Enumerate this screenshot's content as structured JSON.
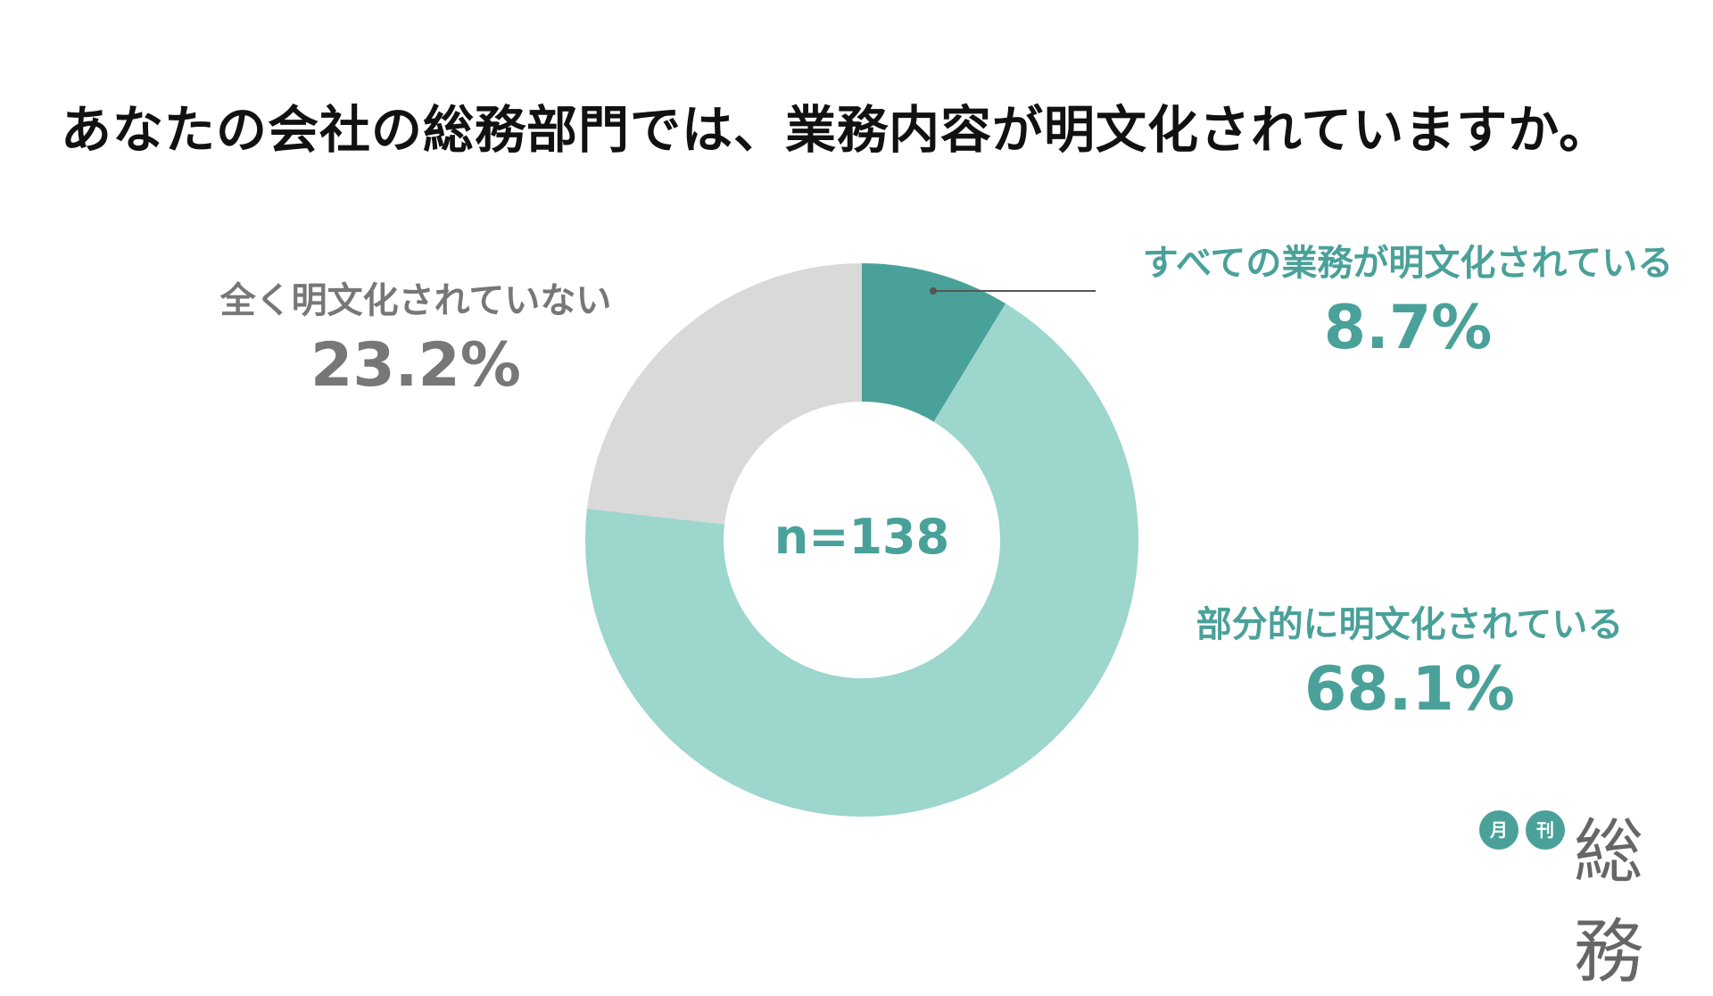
{
  "title": "あなたの会社の総務部門では、業務内容が明文化されていますか。",
  "chart_data": {
    "type": "pie",
    "variant": "donut",
    "sample_label": "n=138",
    "slices": [
      {
        "label": "すべての業務が明文化されている",
        "value": 8.7,
        "value_label": "8.7%",
        "color": "#4aa199"
      },
      {
        "label": "部分的に明文化されている",
        "value": 68.1,
        "value_label": "68.1%",
        "color": "#9cd6cd"
      },
      {
        "label": "全く明文化されていない",
        "value": 23.2,
        "value_label": "23.2%",
        "color": "#d9d9d9"
      }
    ]
  },
  "logo": {
    "badge1": "月",
    "badge2": "刊",
    "word": "総務",
    "badge_color": "#4aa199"
  }
}
